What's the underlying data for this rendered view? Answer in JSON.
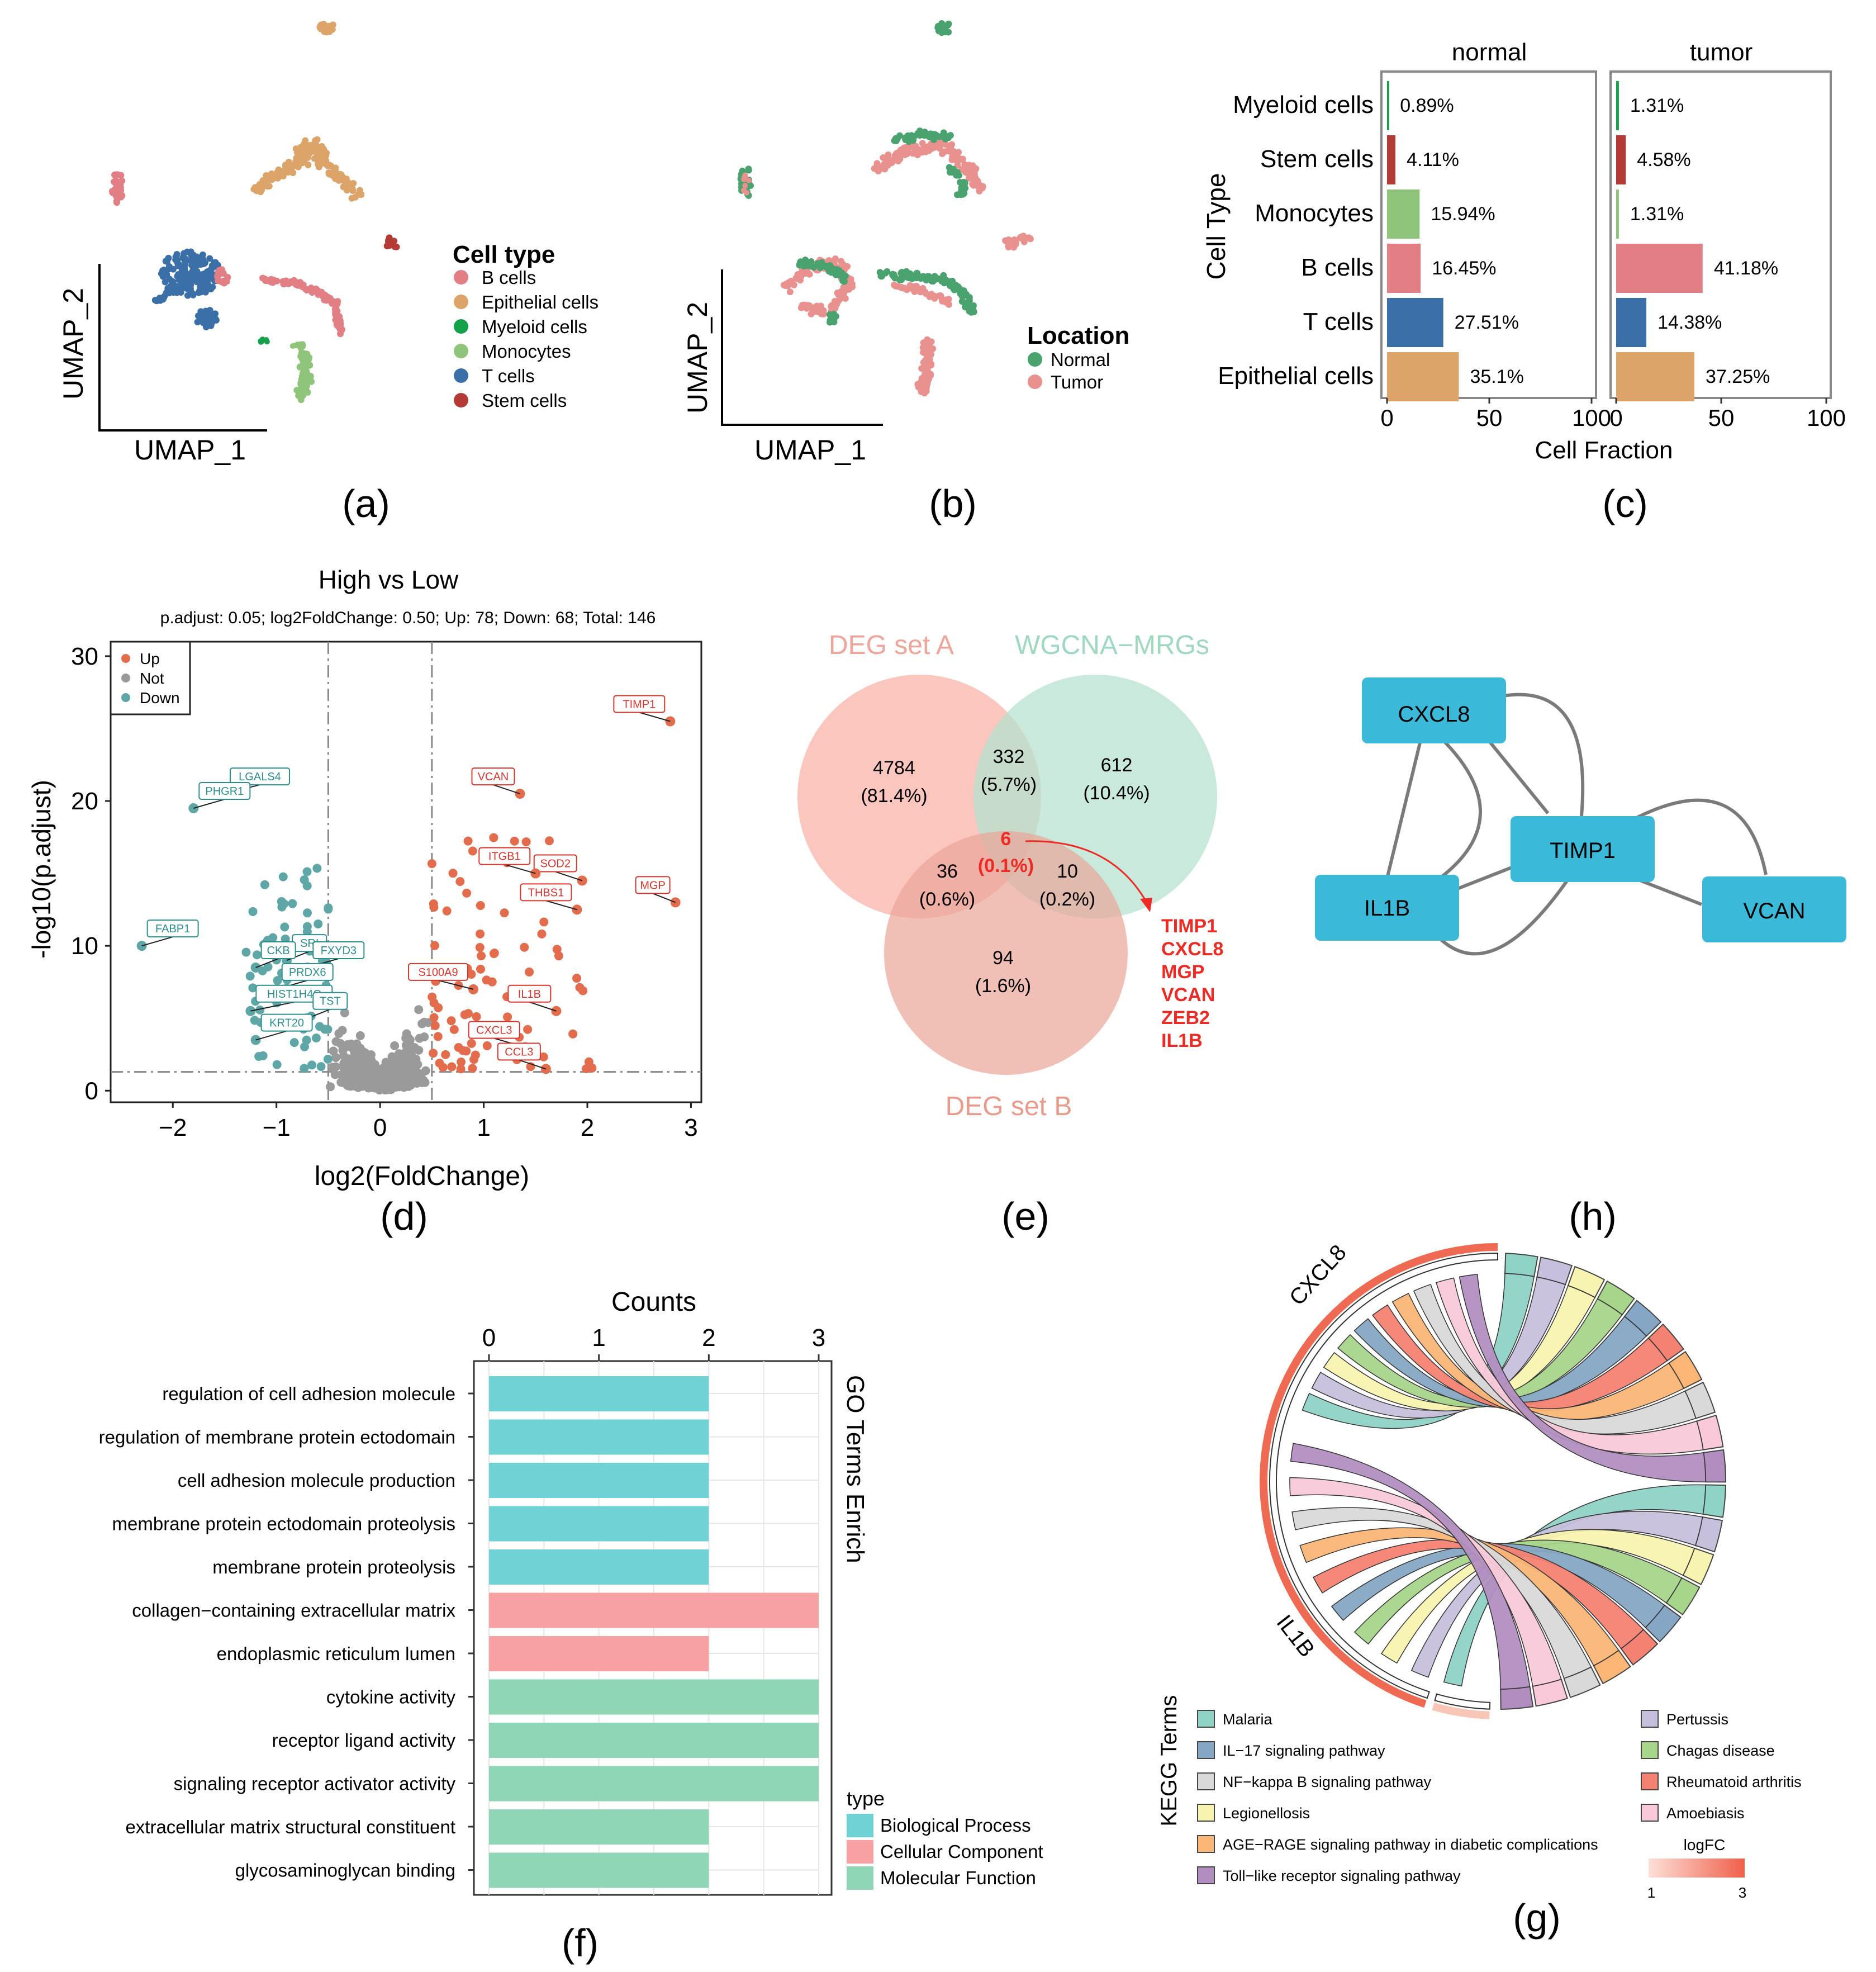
{
  "panel_labels": {
    "a": "(a)",
    "b": "(b)",
    "c": "(c)",
    "d": "(d)",
    "e": "(e)",
    "f": "(f)",
    "g": "(g)",
    "h": "(h)"
  },
  "colors": {
    "b_cells": "#e27f84",
    "epithelial": "#dca468",
    "myeloid": "#14a14a",
    "monocytes": "#8fc57a",
    "t_cells": "#3b6fa8",
    "stem": "#b33a35",
    "normal": "#4aa36f",
    "tumor": "#e9918f",
    "up": "#e36c4d",
    "not": "#9a9a9a",
    "down": "#5fa7a6",
    "node": "#3bb9d9",
    "bp": "#6fd3d6",
    "cc": "#f7a1a2",
    "mf": "#8fd6b6"
  },
  "panel_a": {
    "xlabel": "UMAP_1",
    "ylabel": "UMAP_2",
    "legend_title": "Cell type",
    "legend": [
      "B cells",
      "Epithelial cells",
      "Myeloid cells",
      "Monocytes",
      "T cells",
      "Stem cells"
    ]
  },
  "panel_b": {
    "xlabel": "UMAP_1",
    "ylabel": "UMAP_2",
    "legend_title": "Location",
    "legend": [
      "Normal",
      "Tumor"
    ]
  },
  "chart_data": [
    {
      "id": "c",
      "type": "bar",
      "orientation": "horizontal",
      "ylabel": "Cell Type",
      "xlabel": "Cell Fraction",
      "xlim": [
        0,
        100
      ],
      "xticks": [
        "0",
        "50",
        "100"
      ],
      "categories": [
        "Myeloid cells",
        "Stem cells",
        "Monocytes",
        "B cells",
        "T cells",
        "Epithelial cells"
      ],
      "series": [
        {
          "name": "normal",
          "values": [
            0.89,
            4.11,
            15.94,
            16.45,
            27.51,
            35.1
          ],
          "labels": [
            "0.89%",
            "4.11%",
            "15.94%",
            "16.45%",
            "27.51%",
            "35.1%"
          ]
        },
        {
          "name": "tumor",
          "values": [
            1.31,
            4.58,
            1.31,
            41.18,
            14.38,
            37.25
          ],
          "labels": [
            "1.31%",
            "4.58%",
            "1.31%",
            "41.18%",
            "14.38%",
            "37.25%"
          ]
        }
      ]
    },
    {
      "id": "d",
      "type": "scatter",
      "title": "High vs Low",
      "subtitle": "p.adjust: 0.05; log2FoldChange: 0.50; Up: 78; Down: 68; Total: 146",
      "xlabel": "log2(FoldChange)",
      "ylabel": "-log10(p.adjust)",
      "xlim": [
        -2.6,
        3.1
      ],
      "ylim": [
        -0.8,
        31
      ],
      "xticks": [
        "−2",
        "−1",
        "0",
        "1",
        "2",
        "3"
      ],
      "yticks": [
        "0",
        "10",
        "20",
        "30"
      ],
      "legend": [
        "Up",
        "Not",
        "Down"
      ],
      "thresholds": {
        "fc": 0.5,
        "p": 1.3
      },
      "labeled_genes": [
        {
          "gene": "TIMP1",
          "x": 2.8,
          "y": 25.5,
          "group": "up"
        },
        {
          "gene": "VCAN",
          "x": 1.35,
          "y": 20.5,
          "group": "up"
        },
        {
          "gene": "SOD2",
          "x": 1.95,
          "y": 14.5,
          "group": "up"
        },
        {
          "gene": "ITGB1",
          "x": 1.5,
          "y": 15.0,
          "group": "up"
        },
        {
          "gene": "MGP",
          "x": 2.85,
          "y": 13.0,
          "group": "up"
        },
        {
          "gene": "THBS1",
          "x": 1.9,
          "y": 12.5,
          "group": "up"
        },
        {
          "gene": "S100A9",
          "x": 0.9,
          "y": 7.0,
          "group": "up"
        },
        {
          "gene": "IL1B",
          "x": 1.7,
          "y": 5.5,
          "group": "up"
        },
        {
          "gene": "CXCL3",
          "x": 1.4,
          "y": 3.0,
          "group": "up"
        },
        {
          "gene": "CCL3",
          "x": 1.6,
          "y": 1.5,
          "group": "up"
        },
        {
          "gene": "LGALS4",
          "x": -1.5,
          "y": 20.5,
          "group": "down"
        },
        {
          "gene": "PHGR1",
          "x": -1.8,
          "y": 19.5,
          "group": "down"
        },
        {
          "gene": "FABP1",
          "x": -2.3,
          "y": 10.0,
          "group": "down"
        },
        {
          "gene": "SRI",
          "x": -0.9,
          "y": 9.0,
          "group": "down"
        },
        {
          "gene": "CKB",
          "x": -1.2,
          "y": 8.5,
          "group": "down"
        },
        {
          "gene": "FXYD3",
          "x": -0.7,
          "y": 8.5,
          "group": "down"
        },
        {
          "gene": "PRDX6",
          "x": -1.0,
          "y": 7.0,
          "group": "down"
        },
        {
          "gene": "HIST1H4C",
          "x": -1.25,
          "y": 5.5,
          "group": "down"
        },
        {
          "gene": "TST",
          "x": -0.7,
          "y": 5.0,
          "group": "down"
        },
        {
          "gene": "KRT20",
          "x": -1.2,
          "y": 3.5,
          "group": "down"
        }
      ]
    },
    {
      "id": "f",
      "type": "bar",
      "orientation": "horizontal",
      "title": "Counts",
      "side_label": "GO Terms Enrich",
      "xlim": [
        0,
        3
      ],
      "xticks": [
        "0",
        "1",
        "2",
        "3"
      ],
      "categories": [
        "regulation of cell adhesion molecule",
        "regulation of membrane protein ectodomain",
        "cell adhesion molecule production",
        "membrane protein ectodomain proteolysis",
        "membrane protein proteolysis",
        "collagen−containing extracellular matrix",
        "endoplasmic reticulum lumen",
        "cytokine activity",
        "receptor ligand activity",
        "signaling receptor activator activity",
        "extracellular matrix structural constituent",
        "glycosaminoglycan binding"
      ],
      "values": [
        2,
        2,
        2,
        2,
        2,
        3,
        2,
        3,
        3,
        3,
        2,
        2
      ],
      "types": [
        "bp",
        "bp",
        "bp",
        "bp",
        "bp",
        "cc",
        "cc",
        "mf",
        "mf",
        "mf",
        "mf",
        "mf"
      ],
      "legend_title": "type",
      "legend": [
        "Biological Process",
        "Cellular Component",
        "Molecular Function"
      ]
    }
  ],
  "panel_e": {
    "set_a": "DEG set A",
    "set_w": "WGCNA−MRGs",
    "set_b": "DEG set B",
    "regions": [
      {
        "count": "4784",
        "pct": "(81.4%)"
      },
      {
        "count": "332",
        "pct": "(5.7%)"
      },
      {
        "count": "612",
        "pct": "(10.4%)"
      },
      {
        "count": "36",
        "pct": "(0.6%)"
      },
      {
        "count": "10",
        "pct": "(0.2%)"
      },
      {
        "count": "94",
        "pct": "(1.6%)"
      }
    ],
    "center": {
      "count": "6",
      "pct": "(0.1%)"
    },
    "genes": [
      "TIMP1",
      "CXCL8",
      "MGP",
      "VCAN",
      "ZEB2",
      "IL1B"
    ]
  },
  "panel_h": {
    "nodes": [
      "CXCL8",
      "TIMP1",
      "IL1B",
      "VCAN"
    ]
  },
  "panel_g": {
    "genes": [
      "CXCL8",
      "IL1B"
    ],
    "legend_title": "KEGG Terms",
    "terms": [
      {
        "name": "Malaria",
        "color": "#8fd3c6"
      },
      {
        "name": "IL−17 signaling pathway",
        "color": "#85a6c4"
      },
      {
        "name": "NF−kappa B signaling pathway",
        "color": "#d9d9d9"
      },
      {
        "name": "Legionellosis",
        "color": "#f7f3b0"
      },
      {
        "name": "AGE−RAGE signaling pathway in diabetic complications",
        "color": "#fbb676"
      },
      {
        "name": "Toll−like receptor signaling pathway",
        "color": "#b28ec0"
      },
      {
        "name": "Pertussis",
        "color": "#c6c0dc"
      },
      {
        "name": "Chagas disease",
        "color": "#a7d58a"
      },
      {
        "name": "Rheumatoid arthritis",
        "color": "#f48272"
      },
      {
        "name": "Amoebiasis",
        "color": "#f9c9d9"
      }
    ],
    "scale_title": "logFC",
    "scale_min": "1",
    "scale_max": "3"
  }
}
